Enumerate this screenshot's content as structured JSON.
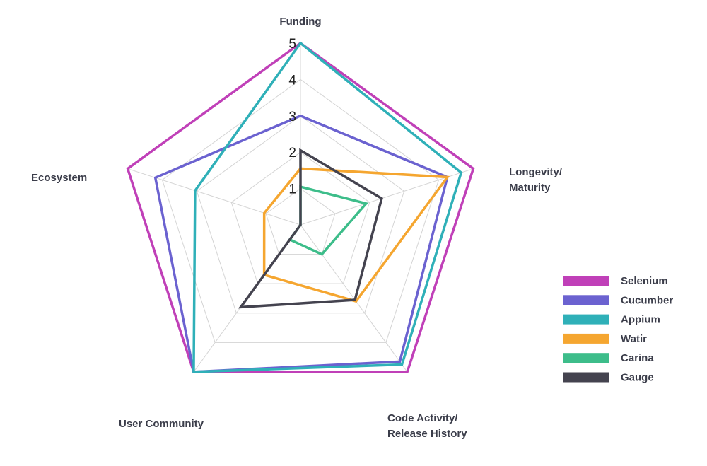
{
  "chart_data": {
    "type": "radar",
    "axes": [
      {
        "lines": [
          "Funding"
        ]
      },
      {
        "lines": [
          "Longevity/",
          "Maturity"
        ]
      },
      {
        "lines": [
          "Code Activity/",
          "Release History"
        ]
      },
      {
        "lines": [
          "User Community"
        ]
      },
      {
        "lines": [
          "Ecosystem"
        ]
      }
    ],
    "ticks": [
      "1",
      "2",
      "3",
      "4",
      "5"
    ],
    "range": [
      0,
      5
    ],
    "grid": true,
    "legend_position": "right",
    "series": [
      {
        "name": "Selenium",
        "color": "#c040b8",
        "values": [
          5,
          5,
          5,
          5,
          5
        ]
      },
      {
        "name": "Cucumber",
        "color": "#6b62d0",
        "values": [
          3,
          4.25,
          4.65,
          5,
          4.2
        ]
      },
      {
        "name": "Appium",
        "color": "#2fb0b8",
        "values": [
          5,
          4.65,
          4.75,
          5,
          3.05
        ]
      },
      {
        "name": "Watir",
        "color": "#f5a630",
        "values": [
          1.55,
          4.25,
          2.6,
          1.7,
          1.05
        ]
      },
      {
        "name": "Carina",
        "color": "#3dbd8a",
        "values": [
          1.05,
          1.9,
          1.0,
          0.5,
          0
        ]
      },
      {
        "name": "Gauge",
        "color": "#44434f",
        "values": [
          2.05,
          2.35,
          2.55,
          2.8,
          0
        ]
      }
    ]
  }
}
